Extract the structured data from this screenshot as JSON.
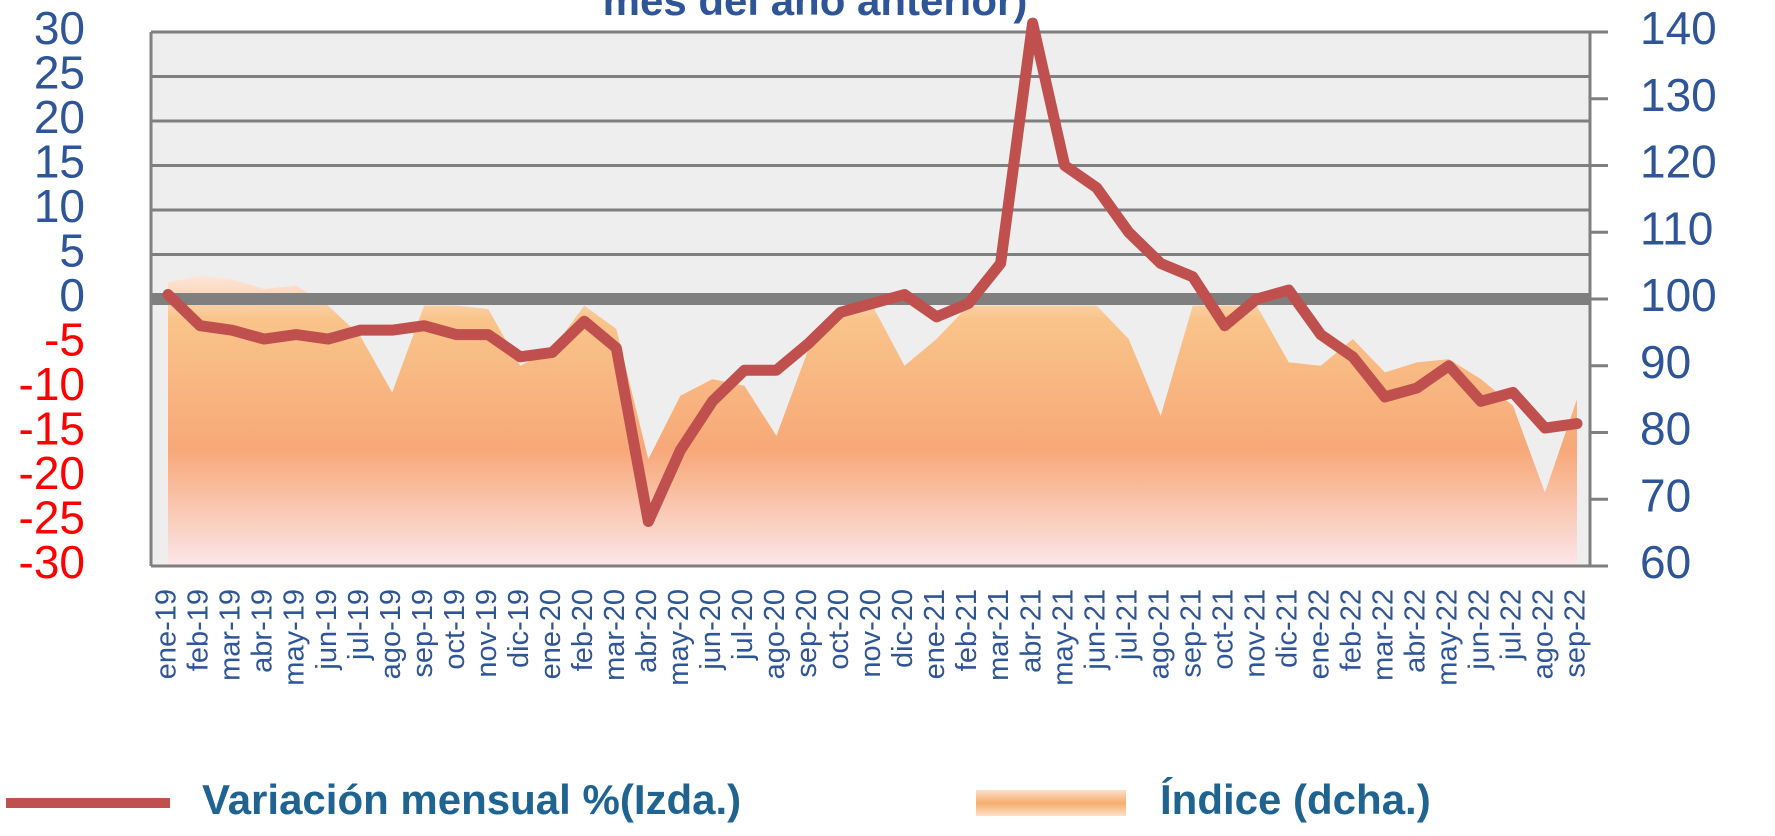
{
  "chart_data": {
    "type": "line",
    "title": "mes del año anterior)",
    "categories": [
      "ene-19",
      "feb-19",
      "mar-19",
      "abr-19",
      "may-19",
      "jun-19",
      "jul-19",
      "ago-19",
      "sep-19",
      "oct-19",
      "nov-19",
      "dic-19",
      "ene-20",
      "feb-20",
      "mar-20",
      "abr-20",
      "may-20",
      "jun-20",
      "jul-20",
      "ago-20",
      "sep-20",
      "oct-20",
      "nov-20",
      "dic-20",
      "ene-21",
      "feb-21",
      "mar-21",
      "abr-21",
      "may-21",
      "jun-21",
      "jul-21",
      "ago-21",
      "sep-21",
      "oct-21",
      "nov-21",
      "dic-21",
      "ene-22",
      "feb-22",
      "mar-22",
      "abr-22",
      "may-22",
      "jun-22",
      "jul-22",
      "ago-22",
      "sep-22"
    ],
    "series": [
      {
        "name": "Variación mensual %(Izda.)",
        "type": "line",
        "axis": "y",
        "color": "#c0504d",
        "values": [
          0.5,
          -3,
          -3.5,
          -4.5,
          -4,
          -4.5,
          -3.5,
          -3.5,
          -3,
          -4,
          -4,
          -6.5,
          -6,
          -2.5,
          -5.5,
          -25,
          -17,
          -11.5,
          -8,
          -8,
          -5,
          -1.5,
          -0.5,
          0.5,
          -2,
          -0.5,
          4,
          31,
          15,
          12.5,
          7.5,
          4,
          2.5,
          -3,
          0,
          1,
          -4,
          -6.5,
          -11,
          -10,
          -7.5,
          -11.5,
          -10.5,
          -14.5,
          -14
        ]
      },
      {
        "name": "Índice (dcha.)",
        "type": "area",
        "axis": "y2",
        "color": "#f7a878",
        "values": [
          102.5,
          103.5,
          103,
          101.5,
          102,
          99,
          94.5,
          86,
          99,
          99,
          98.5,
          90,
          92.5,
          99,
          95.5,
          76,
          85.5,
          88,
          87,
          79.5,
          92.5,
          98.5,
          99,
          90,
          94,
          99,
          99,
          99,
          99,
          99,
          94,
          82.5,
          99,
          99,
          99,
          90.5,
          90,
          94,
          89,
          90.5,
          91,
          88,
          84,
          71,
          85
        ]
      }
    ],
    "ylim": [
      -30,
      30
    ],
    "yticks": [
      30,
      25,
      20,
      15,
      10,
      5,
      0,
      -5,
      -10,
      -15,
      -20,
      -25,
      -30
    ],
    "ytick_colors": {
      "positive": "#2e5597",
      "negative": "#ff0000"
    },
    "y2lim": [
      60,
      140
    ],
    "y2ticks": [
      140,
      130,
      120,
      110,
      100,
      90,
      80,
      70,
      60
    ],
    "grid": true,
    "legend": "bottom"
  }
}
